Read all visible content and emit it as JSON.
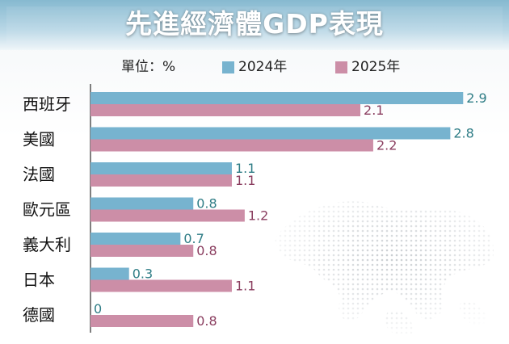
{
  "title": "先進經濟體GDP表現",
  "unit_label": "單位：%",
  "colors": {
    "s2024_bar": "#77b3cf",
    "s2025_bar": "#cc8ea7",
    "s2024_text": "#2f7d86",
    "s2025_text": "#8a3d5f",
    "axis": "#555555"
  },
  "chart_data": {
    "type": "bar",
    "orientation": "horizontal",
    "title": "先進經濟體GDP表現",
    "unit": "單位：%",
    "categories": [
      "西班牙",
      "美國",
      "法國",
      "歐元區",
      "義大利",
      "日本",
      "德國"
    ],
    "series": [
      {
        "name": "2024年",
        "values": [
          2.9,
          2.8,
          1.1,
          0.8,
          0.7,
          0.3,
          0
        ]
      },
      {
        "name": "2025年",
        "values": [
          2.1,
          2.2,
          1.1,
          1.2,
          0.8,
          1.1,
          0.8
        ]
      }
    ],
    "value_labels": [
      [
        "2.9",
        "2.8",
        "1.1",
        "0.8",
        "0.7",
        "0.3",
        "0"
      ],
      [
        "2.1",
        "2.2",
        "1.1",
        "1.2",
        "0.8",
        "1.1",
        "0.8"
      ]
    ],
    "xlim": [
      0,
      3.2
    ],
    "legend_position": "top",
    "grid": false
  }
}
